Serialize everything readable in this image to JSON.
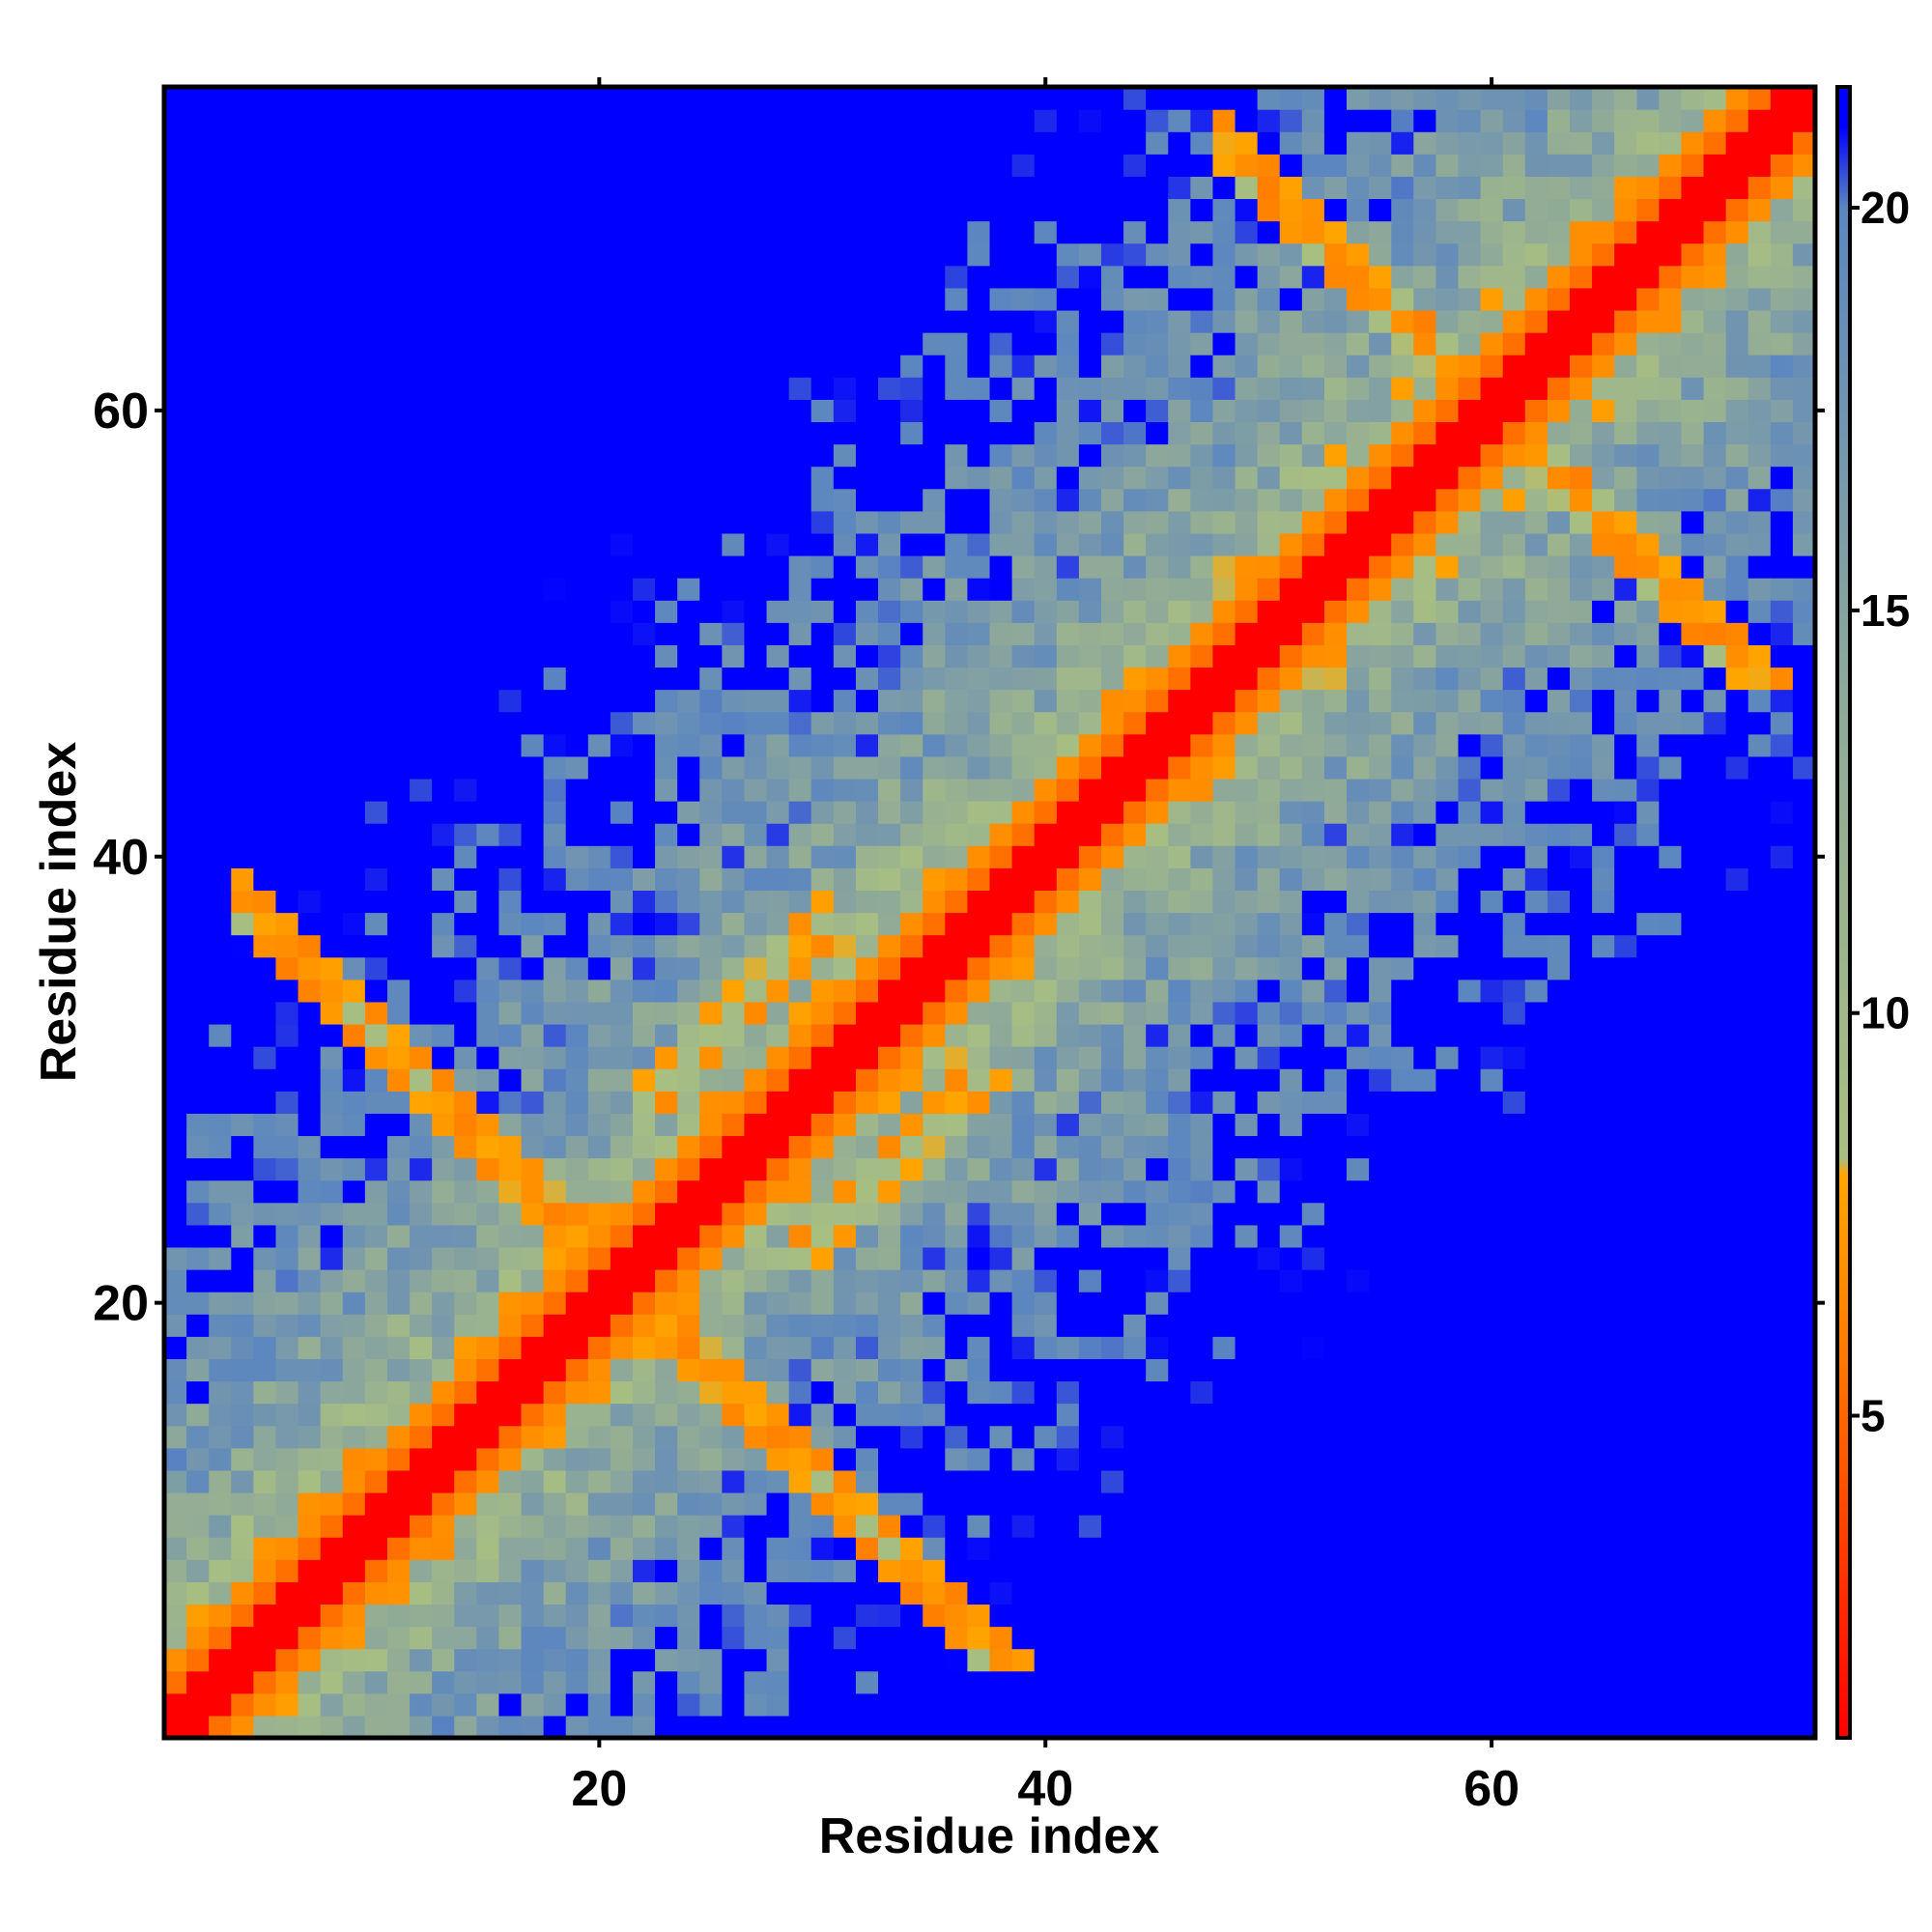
{
  "chart_data": {
    "type": "heatmap",
    "title": "",
    "xlabel": "Residue index",
    "ylabel": "Residue index",
    "n_residues": 74,
    "xlim": [
      0.5,
      74.5
    ],
    "ylim": [
      0.5,
      74.5
    ],
    "x_ticks": [
      20,
      40,
      60
    ],
    "y_ticks": [
      20,
      40,
      60
    ],
    "colorbar": {
      "range": [
        1,
        21.5
      ],
      "ticks": [
        5,
        10,
        15,
        20
      ],
      "stops": [
        {
          "value": 1.0,
          "color": "#ff0000"
        },
        {
          "value": 6.0,
          "color": "#ff7f00"
        },
        {
          "value": 8.0,
          "color": "#ffa500"
        },
        {
          "value": 8.2,
          "color": "#a8bf82"
        },
        {
          "value": 14.0,
          "color": "#8ea89a"
        },
        {
          "value": 20.0,
          "color": "#5b86c0"
        },
        {
          "value": 21.0,
          "color": "#0000ff"
        }
      ]
    },
    "grid": false,
    "legend": "colorbar-right",
    "note_values": "Pairwise residue distance matrix (symmetric). Diagonal ~1; near-diagonal band rising with sequence separation; two helix-like contact stretches off-diagonal (approx. residues 5-20 vs 22-28 and 48-60 vs 60-72) with values 5-8; saturated 21+ regions far from the diagonal (upper-left and lower-right corners)."
  }
}
